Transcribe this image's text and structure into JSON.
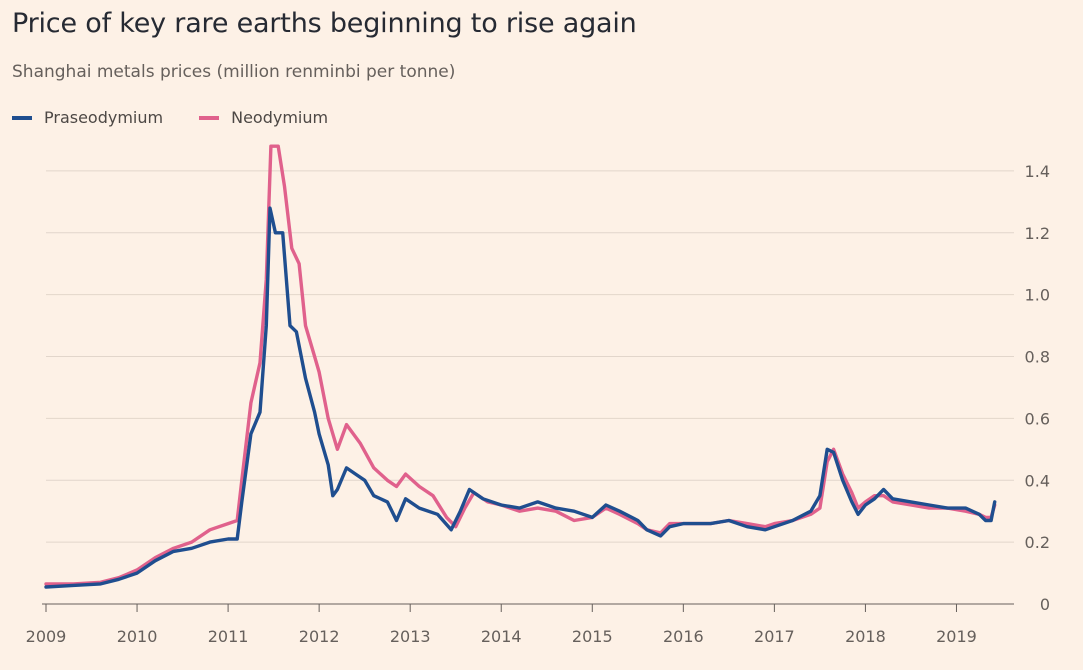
{
  "title": "Price of key rare earths beginning to rise again",
  "subtitle": "Shanghai metals prices (million renminbi per tonne)",
  "colors": {
    "praseodymium": "#1f4e8f",
    "neodymium": "#e0618c",
    "background": "#fdf1e6"
  },
  "chart_data": {
    "type": "line",
    "title": "Price of key rare earths beginning to rise again",
    "subtitle": "Shanghai metals prices (million renminbi per tonne)",
    "xlabel": "",
    "ylabel": "",
    "xlim": [
      2009,
      2019.5
    ],
    "ylim": [
      0,
      1.5
    ],
    "x_ticks": [
      2009,
      2010,
      2011,
      2012,
      2013,
      2014,
      2015,
      2016,
      2017,
      2018,
      2019
    ],
    "x_tick_labels": [
      "2009",
      "2010",
      "2011",
      "2012",
      "2013",
      "2014",
      "2015",
      "2016",
      "2017",
      "2018",
      "2019"
    ],
    "y_ticks": [
      0,
      0.2,
      0.4,
      0.6,
      0.8,
      1.0,
      1.2,
      1.4
    ],
    "y_tick_labels": [
      "0",
      "0.2",
      "0.4",
      "0.6",
      "0.8",
      "1.0",
      "1.2",
      "1.4"
    ],
    "y_axis_side": "right",
    "grid": true,
    "legend_position": "top-left",
    "series": [
      {
        "name": "Praseodymium",
        "color": "#1f4e8f",
        "points": [
          [
            2009.0,
            0.055
          ],
          [
            2009.3,
            0.06
          ],
          [
            2009.6,
            0.065
          ],
          [
            2009.8,
            0.08
          ],
          [
            2010.0,
            0.1
          ],
          [
            2010.2,
            0.14
          ],
          [
            2010.4,
            0.17
          ],
          [
            2010.6,
            0.18
          ],
          [
            2010.8,
            0.2
          ],
          [
            2011.0,
            0.21
          ],
          [
            2011.1,
            0.21
          ],
          [
            2011.15,
            0.33
          ],
          [
            2011.25,
            0.55
          ],
          [
            2011.35,
            0.62
          ],
          [
            2011.42,
            0.9
          ],
          [
            2011.46,
            1.28
          ],
          [
            2011.52,
            1.2
          ],
          [
            2011.6,
            1.2
          ],
          [
            2011.68,
            0.9
          ],
          [
            2011.75,
            0.88
          ],
          [
            2011.85,
            0.73
          ],
          [
            2011.95,
            0.62
          ],
          [
            2012.0,
            0.55
          ],
          [
            2012.1,
            0.45
          ],
          [
            2012.15,
            0.35
          ],
          [
            2012.2,
            0.37
          ],
          [
            2012.3,
            0.44
          ],
          [
            2012.4,
            0.42
          ],
          [
            2012.5,
            0.4
          ],
          [
            2012.6,
            0.35
          ],
          [
            2012.75,
            0.33
          ],
          [
            2012.85,
            0.27
          ],
          [
            2012.95,
            0.34
          ],
          [
            2013.1,
            0.31
          ],
          [
            2013.3,
            0.29
          ],
          [
            2013.45,
            0.24
          ],
          [
            2013.55,
            0.3
          ],
          [
            2013.65,
            0.37
          ],
          [
            2013.8,
            0.34
          ],
          [
            2014.0,
            0.32
          ],
          [
            2014.2,
            0.31
          ],
          [
            2014.4,
            0.33
          ],
          [
            2014.6,
            0.31
          ],
          [
            2014.8,
            0.3
          ],
          [
            2015.0,
            0.28
          ],
          [
            2015.15,
            0.32
          ],
          [
            2015.3,
            0.3
          ],
          [
            2015.5,
            0.27
          ],
          [
            2015.6,
            0.24
          ],
          [
            2015.75,
            0.22
          ],
          [
            2015.85,
            0.25
          ],
          [
            2016.0,
            0.26
          ],
          [
            2016.3,
            0.26
          ],
          [
            2016.5,
            0.27
          ],
          [
            2016.7,
            0.25
          ],
          [
            2016.9,
            0.24
          ],
          [
            2017.0,
            0.25
          ],
          [
            2017.2,
            0.27
          ],
          [
            2017.4,
            0.3
          ],
          [
            2017.5,
            0.35
          ],
          [
            2017.58,
            0.5
          ],
          [
            2017.65,
            0.49
          ],
          [
            2017.75,
            0.4
          ],
          [
            2017.85,
            0.33
          ],
          [
            2017.92,
            0.29
          ],
          [
            2018.0,
            0.32
          ],
          [
            2018.1,
            0.34
          ],
          [
            2018.2,
            0.37
          ],
          [
            2018.3,
            0.34
          ],
          [
            2018.5,
            0.33
          ],
          [
            2018.7,
            0.32
          ],
          [
            2018.9,
            0.31
          ],
          [
            2019.1,
            0.31
          ],
          [
            2019.25,
            0.29
          ],
          [
            2019.32,
            0.27
          ],
          [
            2019.38,
            0.27
          ],
          [
            2019.42,
            0.33
          ]
        ]
      },
      {
        "name": "Neodymium",
        "color": "#e0618c",
        "points": [
          [
            2009.0,
            0.065
          ],
          [
            2009.3,
            0.065
          ],
          [
            2009.6,
            0.07
          ],
          [
            2009.8,
            0.085
          ],
          [
            2010.0,
            0.11
          ],
          [
            2010.2,
            0.15
          ],
          [
            2010.4,
            0.18
          ],
          [
            2010.6,
            0.2
          ],
          [
            2010.8,
            0.24
          ],
          [
            2011.0,
            0.26
          ],
          [
            2011.1,
            0.27
          ],
          [
            2011.15,
            0.4
          ],
          [
            2011.25,
            0.65
          ],
          [
            2011.35,
            0.78
          ],
          [
            2011.42,
            1.05
          ],
          [
            2011.47,
            1.48
          ],
          [
            2011.55,
            1.48
          ],
          [
            2011.62,
            1.35
          ],
          [
            2011.7,
            1.15
          ],
          [
            2011.78,
            1.1
          ],
          [
            2011.85,
            0.9
          ],
          [
            2011.95,
            0.8
          ],
          [
            2012.0,
            0.75
          ],
          [
            2012.1,
            0.6
          ],
          [
            2012.2,
            0.5
          ],
          [
            2012.3,
            0.58
          ],
          [
            2012.45,
            0.52
          ],
          [
            2012.6,
            0.44
          ],
          [
            2012.75,
            0.4
          ],
          [
            2012.85,
            0.38
          ],
          [
            2012.95,
            0.42
          ],
          [
            2013.1,
            0.38
          ],
          [
            2013.25,
            0.35
          ],
          [
            2013.4,
            0.28
          ],
          [
            2013.5,
            0.25
          ],
          [
            2013.6,
            0.31
          ],
          [
            2013.7,
            0.36
          ],
          [
            2013.85,
            0.33
          ],
          [
            2014.0,
            0.32
          ],
          [
            2014.2,
            0.3
          ],
          [
            2014.4,
            0.31
          ],
          [
            2014.6,
            0.3
          ],
          [
            2014.8,
            0.27
          ],
          [
            2015.0,
            0.28
          ],
          [
            2015.15,
            0.31
          ],
          [
            2015.3,
            0.29
          ],
          [
            2015.5,
            0.26
          ],
          [
            2015.6,
            0.24
          ],
          [
            2015.75,
            0.23
          ],
          [
            2015.85,
            0.26
          ],
          [
            2016.0,
            0.26
          ],
          [
            2016.3,
            0.26
          ],
          [
            2016.5,
            0.27
          ],
          [
            2016.7,
            0.26
          ],
          [
            2016.9,
            0.25
          ],
          [
            2017.0,
            0.26
          ],
          [
            2017.2,
            0.27
          ],
          [
            2017.4,
            0.29
          ],
          [
            2017.5,
            0.31
          ],
          [
            2017.58,
            0.46
          ],
          [
            2017.65,
            0.5
          ],
          [
            2017.75,
            0.42
          ],
          [
            2017.85,
            0.36
          ],
          [
            2017.92,
            0.31
          ],
          [
            2018.0,
            0.33
          ],
          [
            2018.1,
            0.35
          ],
          [
            2018.2,
            0.35
          ],
          [
            2018.3,
            0.33
          ],
          [
            2018.5,
            0.32
          ],
          [
            2018.7,
            0.31
          ],
          [
            2018.9,
            0.31
          ],
          [
            2019.1,
            0.3
          ],
          [
            2019.25,
            0.29
          ],
          [
            2019.32,
            0.28
          ],
          [
            2019.38,
            0.28
          ],
          [
            2019.42,
            0.32
          ]
        ]
      }
    ]
  }
}
